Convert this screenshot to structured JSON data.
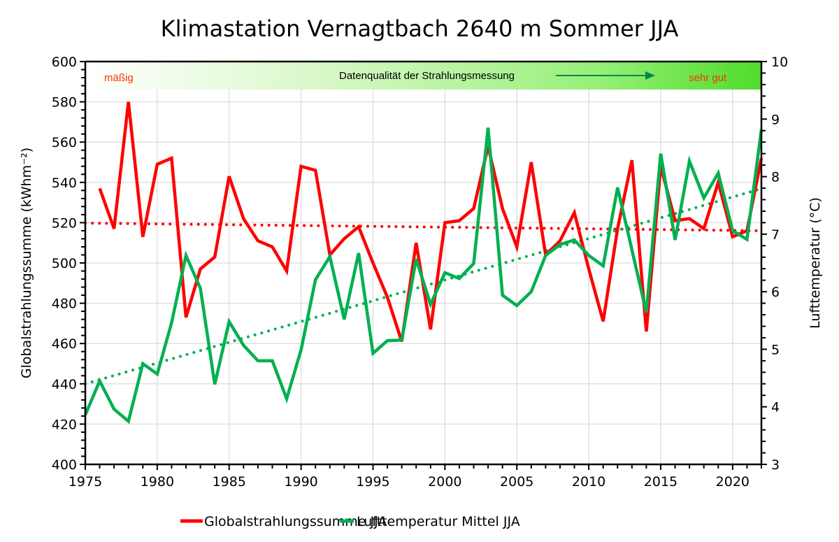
{
  "chart_data": {
    "type": "line",
    "title": "Klimastation Vernagtbach 2640 m Sommer JJA",
    "xlabel": "",
    "ylabel": "Globalstrahlungssumme (kWhm⁻²)",
    "ylabel_right": "Lufttemperatur (°C)",
    "xlim": [
      1975,
      2022
    ],
    "ylim": [
      400,
      600
    ],
    "ylim_right": [
      3,
      10
    ],
    "x_ticks": [
      1975,
      1980,
      1985,
      1990,
      1995,
      2000,
      2005,
      2010,
      2015,
      2020
    ],
    "y_ticks": [
      400,
      420,
      440,
      460,
      480,
      500,
      520,
      540,
      560,
      580,
      600
    ],
    "y_ticks_right": [
      3,
      4,
      5,
      6,
      7,
      8,
      9,
      10
    ],
    "grid": true,
    "legend_position": "bottom",
    "banner": {
      "left_label": "mäßig",
      "center_label": "Datenqualität der Strahlungsmessung",
      "right_label": "sehr gut"
    },
    "series": [
      {
        "name": "Globalstrahlungssumme JJA",
        "axis": "left",
        "color": "#ff0000",
        "x": [
          1976,
          1977,
          1978,
          1979,
          1980,
          1981,
          1982,
          1983,
          1984,
          1985,
          1986,
          1987,
          1988,
          1989,
          1990,
          1991,
          1992,
          1993,
          1994,
          1995,
          1996,
          1997,
          1998,
          1999,
          2000,
          2001,
          2002,
          2003,
          2004,
          2005,
          2006,
          2007,
          2008,
          2009,
          2010,
          2011,
          2012,
          2013,
          2014,
          2015,
          2016,
          2017,
          2018,
          2019,
          2020,
          2021,
          2022
        ],
        "values": [
          537,
          517,
          580,
          513,
          549,
          552,
          473,
          497,
          503,
          543,
          522,
          511,
          508,
          496,
          548,
          546,
          504,
          512,
          518,
          500,
          483,
          461,
          510,
          467,
          520,
          521,
          527,
          558,
          527,
          508,
          550,
          504,
          511,
          525,
          497,
          471,
          517,
          551,
          466,
          548,
          521,
          522,
          517,
          540,
          513,
          516,
          552
        ],
        "trend": {
          "style": "dotted",
          "start": [
            1975,
            519.8
          ],
          "end": [
            2022,
            516
          ]
        }
      },
      {
        "name": "Lufttemperatur Mittel JJA",
        "axis": "right",
        "color": "#00b050",
        "x": [
          1975,
          1976,
          1977,
          1978,
          1979,
          1980,
          1981,
          1982,
          1983,
          1984,
          1985,
          1986,
          1987,
          1988,
          1989,
          1990,
          1991,
          1992,
          1993,
          1994,
          1995,
          1996,
          1997,
          1998,
          1999,
          2000,
          2001,
          2002,
          2003,
          2004,
          2005,
          2006,
          2007,
          2008,
          2009,
          2010,
          2011,
          2012,
          2013,
          2014,
          2015,
          2016,
          2017,
          2018,
          2019,
          2020,
          2021,
          2022
        ],
        "values": [
          3.86,
          4.45,
          3.96,
          3.75,
          4.75,
          4.57,
          5.46,
          6.63,
          6.06,
          4.39,
          5.48,
          5.07,
          4.8,
          4.8,
          4.14,
          4.99,
          6.21,
          6.61,
          5.52,
          6.67,
          4.93,
          5.15,
          5.16,
          6.57,
          5.78,
          6.33,
          6.23,
          6.49,
          8.85,
          5.94,
          5.76,
          6.0,
          6.63,
          6.82,
          6.9,
          6.63,
          6.45,
          7.81,
          6.73,
          5.64,
          8.4,
          6.9,
          8.27,
          7.63,
          8.06,
          7.06,
          6.91,
          8.82
        ],
        "trend": {
          "style": "dotted",
          "start": [
            1975,
            4.4
          ],
          "end": [
            2022,
            7.79
          ]
        }
      }
    ]
  }
}
